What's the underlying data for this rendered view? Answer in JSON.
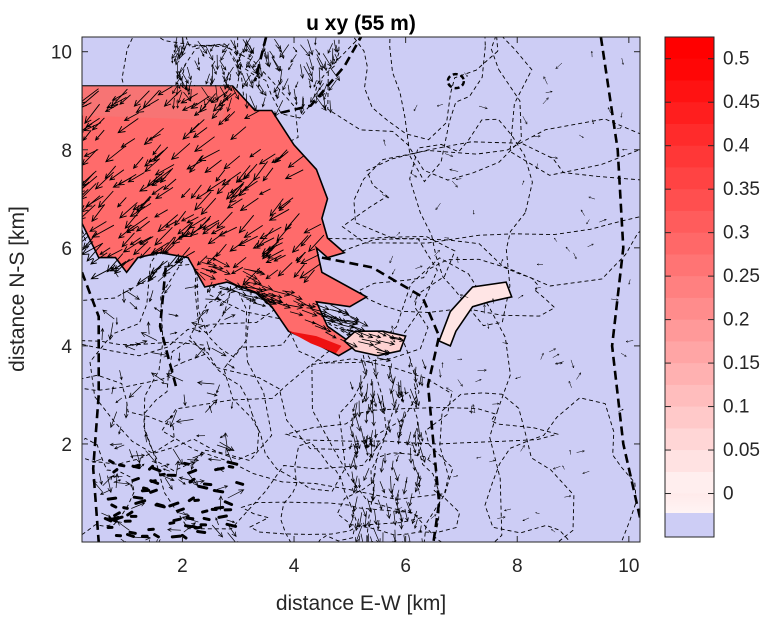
{
  "chart_data": {
    "type": "heatmap",
    "title": "u xy (55 m)",
    "xlabel": "distance E-W [km]",
    "ylabel": "distance N-S [km]",
    "xlim": [
      0.2,
      10.2
    ],
    "ylim": [
      0,
      10.3
    ],
    "xticks": [
      2,
      4,
      6,
      8,
      10
    ],
    "yticks": [
      2,
      4,
      6,
      8,
      10
    ],
    "grid": false,
    "colorbar": {
      "min": -0.05,
      "max": 0.525,
      "ticks": [
        0,
        0.05,
        0.1,
        0.15,
        0.2,
        0.25,
        0.3,
        0.35,
        0.4,
        0.45,
        0.5
      ],
      "tick_labels": [
        "0",
        "0.05",
        "0.1",
        "0.15",
        "0.2",
        "0.25",
        "0.3",
        "0.35",
        "0.4",
        "0.45",
        "0.5"
      ],
      "low_color": "#cdcdf5",
      "zero_color": "#fff4f4",
      "high_color": "#ff0000"
    },
    "background_color": "#cdcdf5",
    "regions": [
      {
        "name": "northwest-high",
        "value": 0.28,
        "points": [
          [
            0.2,
            9.3
          ],
          [
            2.9,
            9.3
          ],
          [
            3.3,
            8.8
          ],
          [
            3.6,
            8.8
          ],
          [
            4.0,
            8.1
          ],
          [
            4.4,
            7.6
          ],
          [
            4.6,
            7.0
          ],
          [
            4.5,
            6.6
          ],
          [
            4.6,
            6.2
          ],
          [
            4.9,
            5.9
          ],
          [
            4.6,
            5.8
          ],
          [
            4.4,
            6.0
          ],
          [
            4.5,
            5.5
          ],
          [
            5.3,
            5.0
          ],
          [
            5.0,
            4.8
          ],
          [
            4.4,
            4.9
          ],
          [
            4.6,
            4.4
          ],
          [
            5.1,
            4.0
          ],
          [
            4.8,
            3.8
          ],
          [
            4.3,
            4.1
          ],
          [
            3.9,
            4.3
          ],
          [
            3.6,
            4.8
          ],
          [
            3.3,
            5.1
          ],
          [
            2.8,
            5.3
          ],
          [
            2.4,
            5.2
          ],
          [
            2.1,
            5.8
          ],
          [
            1.6,
            5.9
          ],
          [
            1.2,
            5.8
          ],
          [
            1.0,
            5.5
          ],
          [
            0.8,
            5.8
          ],
          [
            0.5,
            5.8
          ],
          [
            0.2,
            6.5
          ]
        ]
      },
      {
        "name": "central-low",
        "value": 0.07,
        "points": [
          [
            5.1,
            4.3
          ],
          [
            5.6,
            4.3
          ],
          [
            6.0,
            4.2
          ],
          [
            5.9,
            3.9
          ],
          [
            5.5,
            3.8
          ],
          [
            5.1,
            3.9
          ],
          [
            4.9,
            4.1
          ]
        ]
      },
      {
        "name": "east-low",
        "value": 0.03,
        "points": [
          [
            6.6,
            4.1
          ],
          [
            6.8,
            4.7
          ],
          [
            7.2,
            5.2
          ],
          [
            7.8,
            5.3
          ],
          [
            7.9,
            5.0
          ],
          [
            7.5,
            4.9
          ],
          [
            7.2,
            4.8
          ],
          [
            6.9,
            4.3
          ],
          [
            6.8,
            4.0
          ]
        ]
      }
    ],
    "dense_arrow_zones": [
      {
        "name": "north-edge",
        "x_range": [
          1.8,
          4.8
        ],
        "y_range": [
          9.0,
          10.3
        ]
      },
      {
        "name": "south-channel",
        "x_range": [
          5.0,
          6.3
        ],
        "y_range": [
          0.0,
          3.8
        ]
      },
      {
        "name": "southwest",
        "x_range": [
          0.5,
          3.0
        ],
        "y_range": [
          0.0,
          5.5
        ]
      }
    ]
  }
}
